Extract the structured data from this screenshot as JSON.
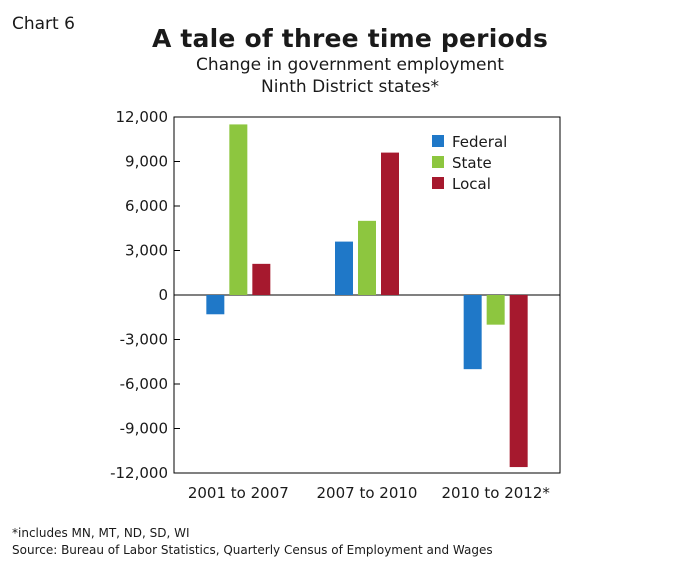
{
  "chart_label": "Chart 6",
  "chart_data": {
    "type": "bar",
    "title": "A tale of three time periods",
    "subtitle": [
      "Change in government employment",
      "Ninth District states*"
    ],
    "categories": [
      "2001 to 2007",
      "2007 to 2010",
      "2010 to 2012*"
    ],
    "series": [
      {
        "name": "Federal",
        "color": "#1f78c8",
        "values": [
          -1300,
          3600,
          -5000
        ]
      },
      {
        "name": "State",
        "color": "#8dc63f",
        "values": [
          11500,
          5000,
          -2000
        ]
      },
      {
        "name": "Local",
        "color": "#a6192e",
        "values": [
          2100,
          9600,
          -11600
        ]
      }
    ],
    "ylim": [
      -12000,
      12000
    ],
    "yticks": [
      12000,
      9000,
      6000,
      3000,
      0,
      -3000,
      -6000,
      -9000,
      -12000
    ],
    "ytick_labels": [
      "12,000",
      "9,000",
      "6,000",
      "3,000",
      "0",
      "-3,000",
      "-6,000",
      "-9,000",
      "-12,000"
    ],
    "legend_position": "top-right",
    "grid": false
  },
  "footnotes": [
    "*includes MN, MT, ND, SD, WI",
    "Source: Bureau of Labor Statistics, Quarterly Census of Employment and Wages"
  ]
}
